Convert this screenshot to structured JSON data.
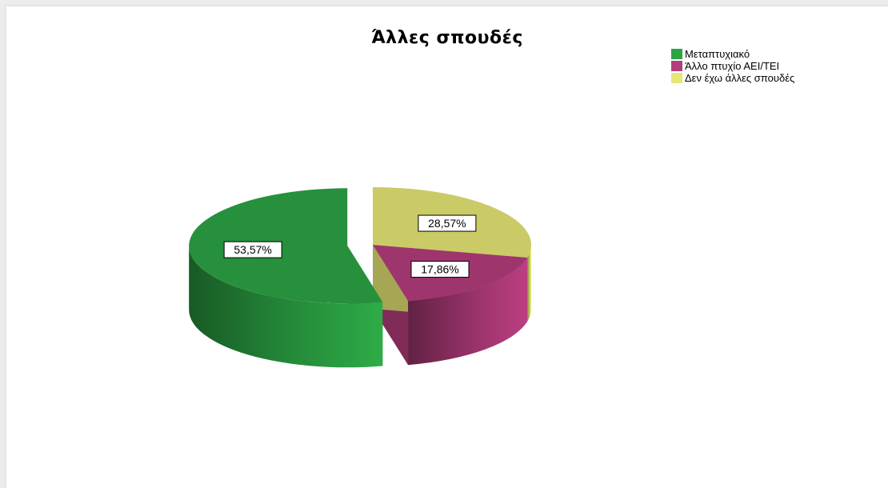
{
  "chart_data": {
    "type": "pie",
    "title": "Άλλες σπουδές",
    "legend_position": "top-right",
    "slices": [
      {
        "label": "Μεταπτυχιακό",
        "value": 53.57,
        "display": "53,57%",
        "color": "#2ca444",
        "exploded": true
      },
      {
        "label": "Άλλο πτυχίο ΑΕΙ/ΤΕΙ",
        "value": 17.86,
        "display": "17,86%",
        "color": "#b33c7c",
        "exploded": false
      },
      {
        "label": "Δεν έχω άλλες σπουδές",
        "value": 28.57,
        "display": "28,57%",
        "color": "#e6e675",
        "exploded": false
      }
    ]
  }
}
